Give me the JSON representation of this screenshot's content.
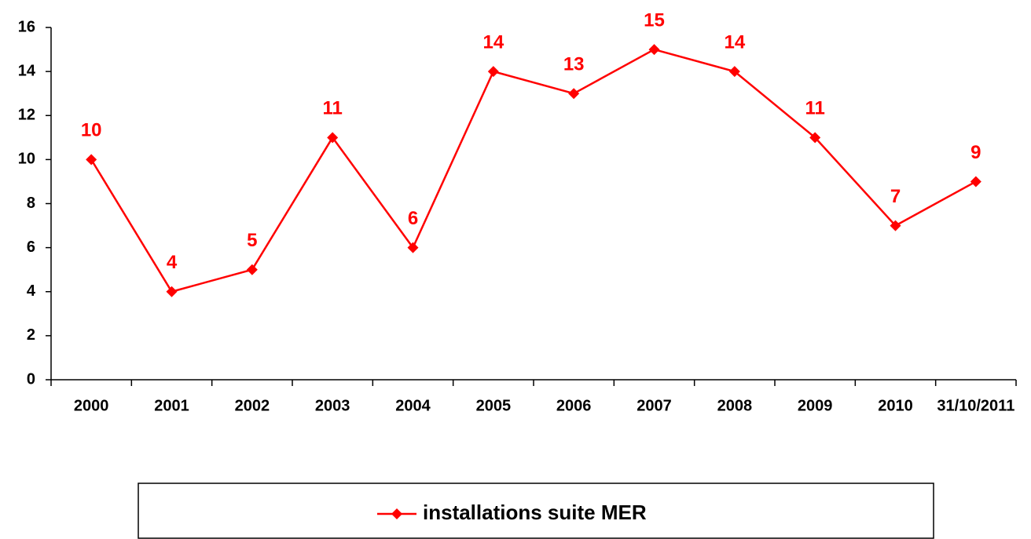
{
  "chart_data": {
    "type": "line",
    "categories": [
      "2000",
      "2001",
      "2002",
      "2003",
      "2004",
      "2005",
      "2006",
      "2007",
      "2008",
      "2009",
      "2010",
      "31/10/2011"
    ],
    "series": [
      {
        "name": "installations suite MER",
        "color": "#ff0000",
        "values": [
          10,
          4,
          5,
          11,
          6,
          14,
          13,
          15,
          14,
          11,
          7,
          9
        ]
      }
    ],
    "ylim": [
      0,
      16
    ],
    "yticks": [
      0,
      2,
      4,
      6,
      8,
      10,
      12,
      14,
      16
    ],
    "grid": false
  }
}
